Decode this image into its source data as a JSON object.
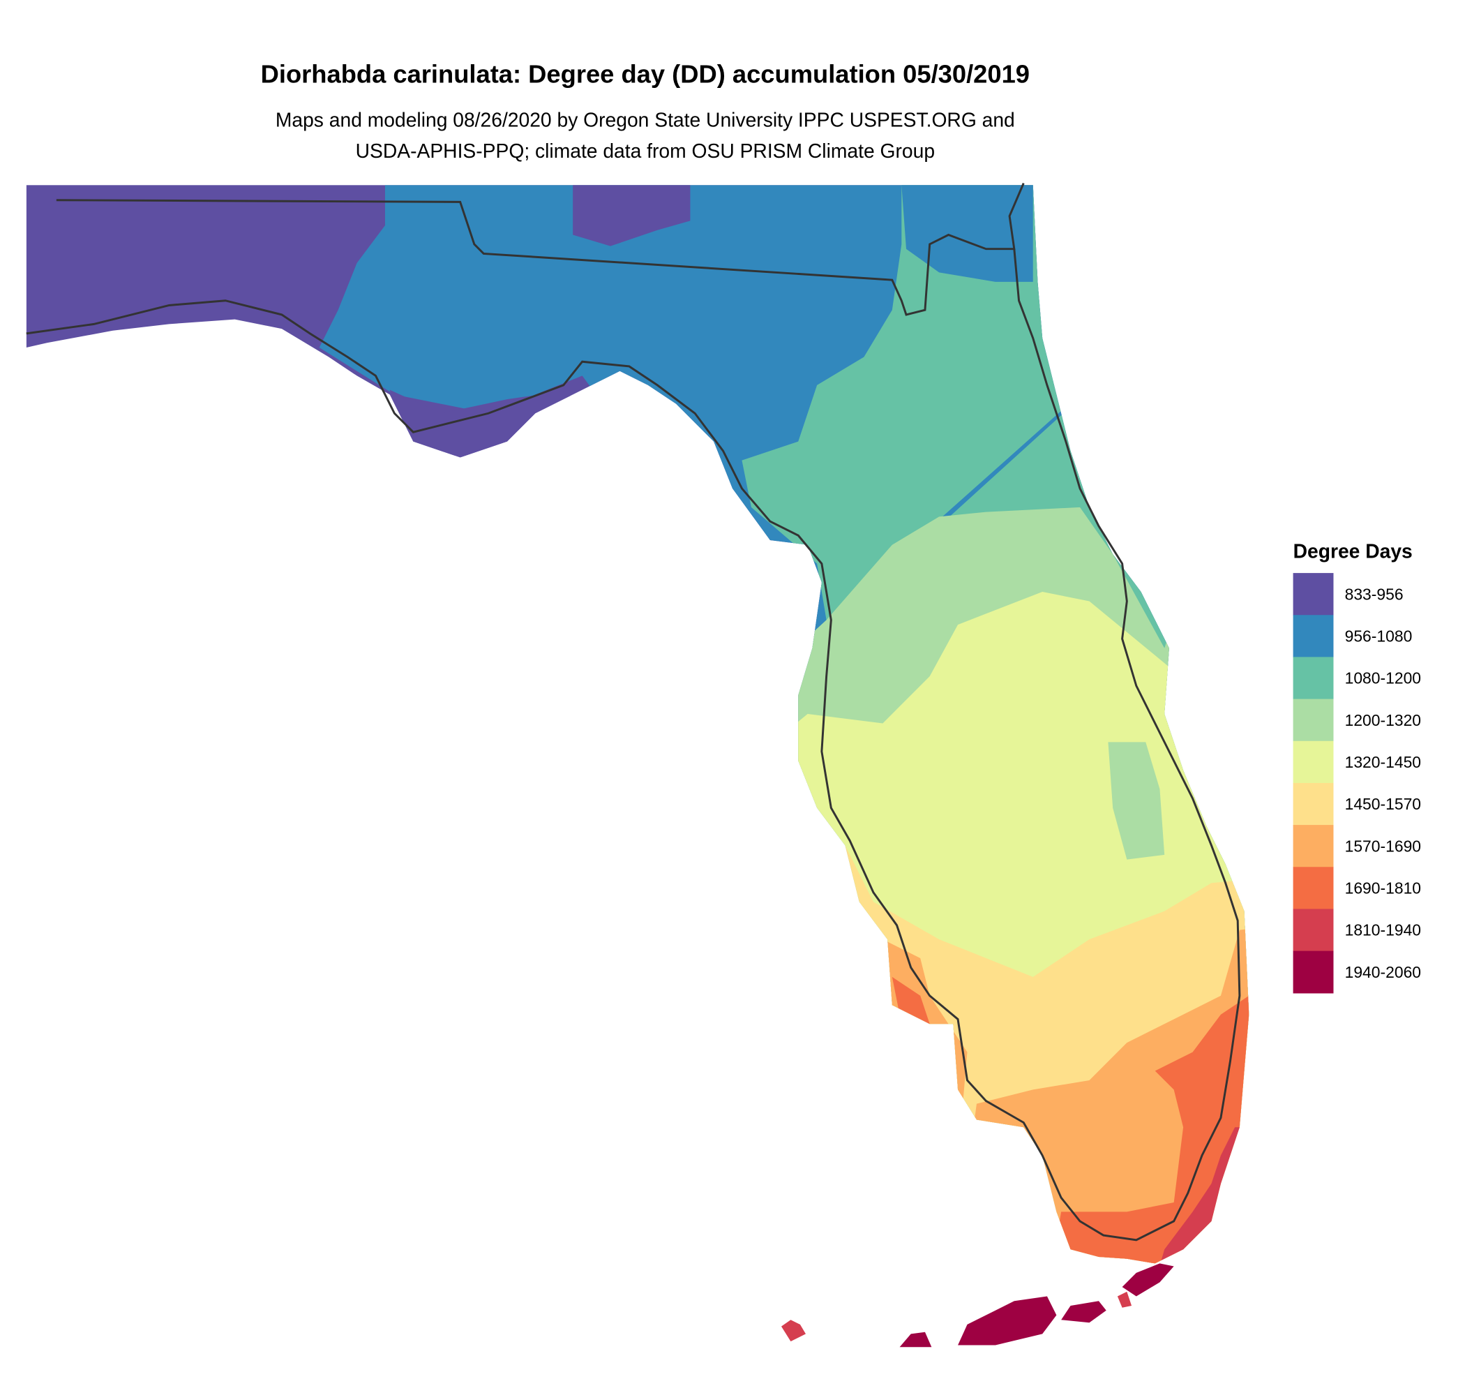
{
  "title": "Diorhabda carinulata: Degree day (DD) accumulation 05/30/2019",
  "subtitle_lines": [
    "Maps and modeling 08/26/2020 by Oregon State University IPPC USPEST.ORG and",
    "USDA-APHIS-PPQ; climate data from OSU PRISM Climate Group"
  ],
  "chart_data": {
    "type": "heatmap",
    "title": "Diorhabda carinulata: Degree day (DD) accumulation 05/30/2019",
    "region": "Florida",
    "legend": {
      "title": "Degree Days",
      "placement": "right",
      "bins": [
        {
          "label": "833-956",
          "color": "#5e4fa2"
        },
        {
          "label": "956-1080",
          "color": "#3288bd"
        },
        {
          "label": "1080-1200",
          "color": "#66c2a5"
        },
        {
          "label": "1200-1320",
          "color": "#abdda4"
        },
        {
          "label": "1320-1450",
          "color": "#e6f598"
        },
        {
          "label": "1450-1570",
          "color": "#fee08b"
        },
        {
          "label": "1570-1690",
          "color": "#fdae61"
        },
        {
          "label": "1690-1810",
          "color": "#f46d43"
        },
        {
          "label": "1810-1940",
          "color": "#d53e4f"
        },
        {
          "label": "1940-2060",
          "color": "#9e0142"
        }
      ]
    },
    "boundary_color": "#333333"
  }
}
